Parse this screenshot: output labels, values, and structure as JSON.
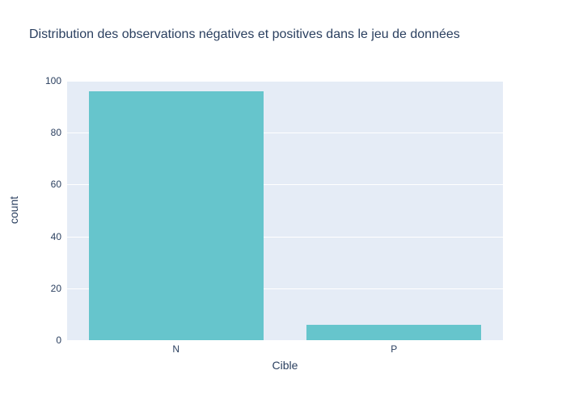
{
  "chart": {
    "title": "Distribution des observations négatives et positives dans le jeu de données",
    "xlabel": "Cible",
    "ylabel": "count",
    "colors": {
      "page_background": "#ffffff",
      "plot_background": "#e5ecf6",
      "gridline": "#ffffff",
      "bar": "#66c5cc",
      "title_text": "#2a3f5f",
      "axis_text": "#2a3f5f"
    }
  },
  "chart_data": {
    "type": "bar",
    "title": "Distribution des observations négatives et positives dans le jeu de données",
    "categories": [
      "N",
      "P"
    ],
    "values": [
      96,
      6
    ],
    "xlabel": "Cible",
    "ylabel": "count",
    "ylim": [
      0,
      100
    ],
    "yticks": [
      0,
      20,
      40,
      60,
      80,
      100
    ],
    "grid": true,
    "legend": false,
    "bar_color": "#66c5cc",
    "bar_width_fraction": 0.8
  }
}
